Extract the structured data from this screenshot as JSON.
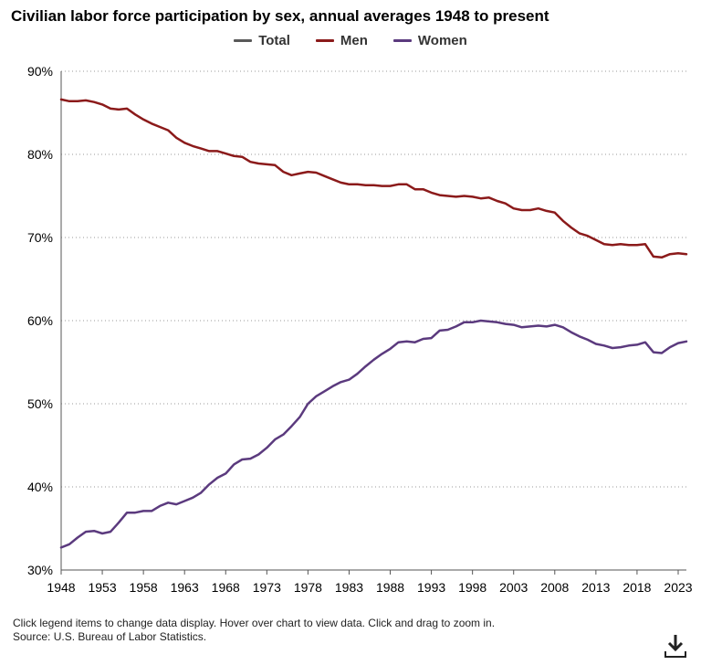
{
  "header": {
    "title": "Civilian labor force participation by sex, annual averages 1948 to present"
  },
  "legend": [
    {
      "label": "Total",
      "color": "#595959"
    },
    {
      "label": "Men",
      "color": "#8b1a1a"
    },
    {
      "label": "Women",
      "color": "#5b3a7e"
    }
  ],
  "footer": {
    "note": "Click legend items to change data display. Hover over chart to view data. Click and drag to zoom in.",
    "source": "Source: U.S. Bureau of Labor Statistics."
  },
  "icons": {
    "download": "download-icon"
  },
  "chart_data": {
    "type": "line",
    "title": "Civilian labor force participation by sex, annual averages 1948 to present",
    "xlabel": "",
    "ylabel": "",
    "xlim": [
      1948,
      2024
    ],
    "ylim": [
      30,
      90
    ],
    "grid": true,
    "legend_position": "top-center",
    "x_ticks": [
      "1948",
      "1953",
      "1958",
      "1963",
      "1968",
      "1973",
      "1978",
      "1983",
      "1988",
      "1993",
      "1998",
      "2003",
      "2008",
      "2013",
      "2018",
      "2023"
    ],
    "y_ticks": [
      "30%",
      "40%",
      "50%",
      "60%",
      "70%",
      "80%",
      "90%"
    ],
    "x": [
      1948,
      1949,
      1950,
      1951,
      1952,
      1953,
      1954,
      1955,
      1956,
      1957,
      1958,
      1959,
      1960,
      1961,
      1962,
      1963,
      1964,
      1965,
      1966,
      1967,
      1968,
      1969,
      1970,
      1971,
      1972,
      1973,
      1974,
      1975,
      1976,
      1977,
      1978,
      1979,
      1980,
      1981,
      1982,
      1983,
      1984,
      1985,
      1986,
      1987,
      1988,
      1989,
      1990,
      1991,
      1992,
      1993,
      1994,
      1995,
      1996,
      1997,
      1998,
      1999,
      2000,
      2001,
      2002,
      2003,
      2004,
      2005,
      2006,
      2007,
      2008,
      2009,
      2010,
      2011,
      2012,
      2013,
      2014,
      2015,
      2016,
      2017,
      2018,
      2019,
      2020,
      2021,
      2022,
      2023,
      2024
    ],
    "series": [
      {
        "name": "Men",
        "color": "#8b1a1a",
        "values": [
          86.6,
          86.4,
          86.4,
          86.5,
          86.3,
          86.0,
          85.5,
          85.4,
          85.5,
          84.8,
          84.2,
          83.7,
          83.3,
          82.9,
          82.0,
          81.4,
          81.0,
          80.7,
          80.4,
          80.4,
          80.1,
          79.8,
          79.7,
          79.1,
          78.9,
          78.8,
          78.7,
          77.9,
          77.5,
          77.7,
          77.9,
          77.8,
          77.4,
          77.0,
          76.6,
          76.4,
          76.4,
          76.3,
          76.3,
          76.2,
          76.2,
          76.4,
          76.4,
          75.8,
          75.8,
          75.4,
          75.1,
          75.0,
          74.9,
          75.0,
          74.9,
          74.7,
          74.8,
          74.4,
          74.1,
          73.5,
          73.3,
          73.3,
          73.5,
          73.2,
          73.0,
          72.0,
          71.2,
          70.5,
          70.2,
          69.7,
          69.2,
          69.1,
          69.2,
          69.1,
          69.1,
          69.2,
          67.7,
          67.6,
          68.0,
          68.1,
          68.0
        ]
      },
      {
        "name": "Women",
        "color": "#5b3a7e",
        "values": [
          32.7,
          33.1,
          33.9,
          34.6,
          34.7,
          34.4,
          34.6,
          35.7,
          36.9,
          36.9,
          37.1,
          37.1,
          37.7,
          38.1,
          37.9,
          38.3,
          38.7,
          39.3,
          40.3,
          41.1,
          41.6,
          42.7,
          43.3,
          43.4,
          43.9,
          44.7,
          45.7,
          46.3,
          47.3,
          48.4,
          50.0,
          50.9,
          51.5,
          52.1,
          52.6,
          52.9,
          53.6,
          54.5,
          55.3,
          56.0,
          56.6,
          57.4,
          57.5,
          57.4,
          57.8,
          57.9,
          58.8,
          58.9,
          59.3,
          59.8,
          59.8,
          60.0,
          59.9,
          59.8,
          59.6,
          59.5,
          59.2,
          59.3,
          59.4,
          59.3,
          59.5,
          59.2,
          58.6,
          58.1,
          57.7,
          57.2,
          57.0,
          56.7,
          56.8,
          57.0,
          57.1,
          57.4,
          56.2,
          56.1,
          56.8,
          57.3,
          57.5
        ]
      }
    ]
  }
}
